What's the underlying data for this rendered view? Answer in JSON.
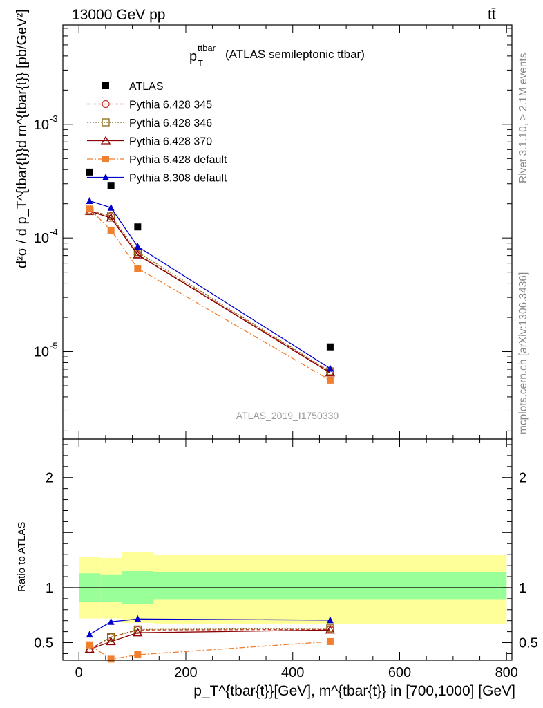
{
  "header": {
    "energy_label": "13000 GeV pp",
    "process_label": "tt̄",
    "observable_symbol": "p",
    "observable_sup": "ttbar",
    "observable_sub": "T",
    "observable_desc": "(ATLAS semileptonic ttbar)",
    "side_rivet": "Rivet 3.1.10, ≥ 2.1M events",
    "side_mcplots": "mcplots.cern.ch [arXiv:1306.3436]",
    "analysis_id": "ATLAS_2019_I1750330"
  },
  "axes": {
    "main_ylabel": "d²σ / d p_T^{tbar{t}}d m^{tbar{t}} [pb/GeV²]",
    "ratio_ylabel": "Ratio to ATLAS",
    "xlabel": "p_T^{tbar{t}}[GeV], m^{tbar{t}} in [700,1000] [GeV]"
  },
  "colors": {
    "atlas": "#000000",
    "py345": "#c0392b",
    "py346": "#8b6914",
    "py370": "#8b0000",
    "pydefault": "#f07f2e",
    "py8": "#0000cc",
    "band_inner": "#99ff99",
    "band_outer": "#ffff99"
  },
  "chart_data": [
    {
      "type": "scatter",
      "panel": "main",
      "title": "",
      "xlabel": "p_T^{tbar{t}}[GeV], m^{tbar{t}} in [700,1000] [GeV]",
      "ylabel": "d²σ / d p_T^{tbar{t}}d m^{tbar{t}} [pb/GeV²]",
      "xlim": [
        -30,
        810
      ],
      "ylim": [
        1.7e-06,
        0.0075
      ],
      "yscale": "log",
      "x_ticks": [
        0,
        200,
        400,
        600,
        800
      ],
      "y_tick_labels": [
        "10^-5",
        "10^-4",
        "10^-3"
      ],
      "legend_position": "top-left",
      "x": [
        20,
        60,
        110,
        470
      ],
      "x_bins": [
        [
          0,
          40
        ],
        [
          40,
          80
        ],
        [
          80,
          140
        ],
        [
          140,
          800
        ]
      ],
      "series": [
        {
          "name": "ATLAS",
          "style": "data",
          "values": [
            0.00038,
            0.00029,
            0.000125,
            1.1e-05
          ]
        },
        {
          "name": "Pythia 6.428 345",
          "style": "py345",
          "values": [
            0.000175,
            0.000155,
            7.2e-05,
            6.6e-06
          ]
        },
        {
          "name": "Pythia 6.428 346",
          "style": "py346",
          "values": [
            0.000172,
            0.000157,
            7.5e-05,
            6.7e-06
          ]
        },
        {
          "name": "Pythia 6.428 370",
          "style": "py370",
          "values": [
            0.000172,
            0.00015,
            7.1e-05,
            6.5e-06
          ]
        },
        {
          "name": "Pythia 6.428 default",
          "style": "pydefault",
          "values": [
            0.00018,
            0.000117,
            5.4e-05,
            5.6e-06
          ]
        },
        {
          "name": "Pythia 8.308 default",
          "style": "py8",
          "values": [
            0.000212,
            0.000185,
            8.4e-05,
            7.1e-06
          ]
        }
      ]
    },
    {
      "type": "line",
      "panel": "ratio",
      "title": "",
      "xlabel": "p_T^{tbar{t}}[GeV], m^{tbar{t}} in [700,1000] [GeV]",
      "ylabel": "Ratio to ATLAS",
      "xlim": [
        -30,
        810
      ],
      "ylim": [
        0.34,
        2.35
      ],
      "x_ticks": [
        0,
        200,
        400,
        600,
        800
      ],
      "y_ticks": [
        0.5,
        1,
        2
      ],
      "x": [
        20,
        60,
        110,
        470
      ],
      "bands": {
        "x_bins": [
          [
            0,
            40
          ],
          [
            40,
            80
          ],
          [
            80,
            140
          ],
          [
            140,
            800
          ]
        ],
        "inner": [
          [
            0.87,
            1.13
          ],
          [
            0.87,
            1.12
          ],
          [
            0.85,
            1.15
          ],
          [
            0.89,
            1.14
          ]
        ],
        "outer": [
          [
            0.72,
            1.28
          ],
          [
            0.72,
            1.27
          ],
          [
            0.68,
            1.32
          ],
          [
            0.67,
            1.3
          ]
        ]
      },
      "series": [
        {
          "name": "Pythia 6.428 345",
          "style": "py345",
          "values": [
            0.44,
            0.55,
            0.615,
            0.62
          ]
        },
        {
          "name": "Pythia 6.428 346",
          "style": "py346",
          "values": [
            0.44,
            0.55,
            0.62,
            0.63
          ]
        },
        {
          "name": "Pythia 6.428 370",
          "style": "py370",
          "values": [
            0.44,
            0.51,
            0.59,
            0.615
          ]
        },
        {
          "name": "Pythia 6.428 default",
          "style": "pydefault",
          "values": [
            0.48,
            0.35,
            0.39,
            0.51
          ]
        },
        {
          "name": "Pythia 8.308 default",
          "style": "py8",
          "values": [
            0.575,
            0.69,
            0.715,
            0.705
          ]
        }
      ]
    }
  ]
}
